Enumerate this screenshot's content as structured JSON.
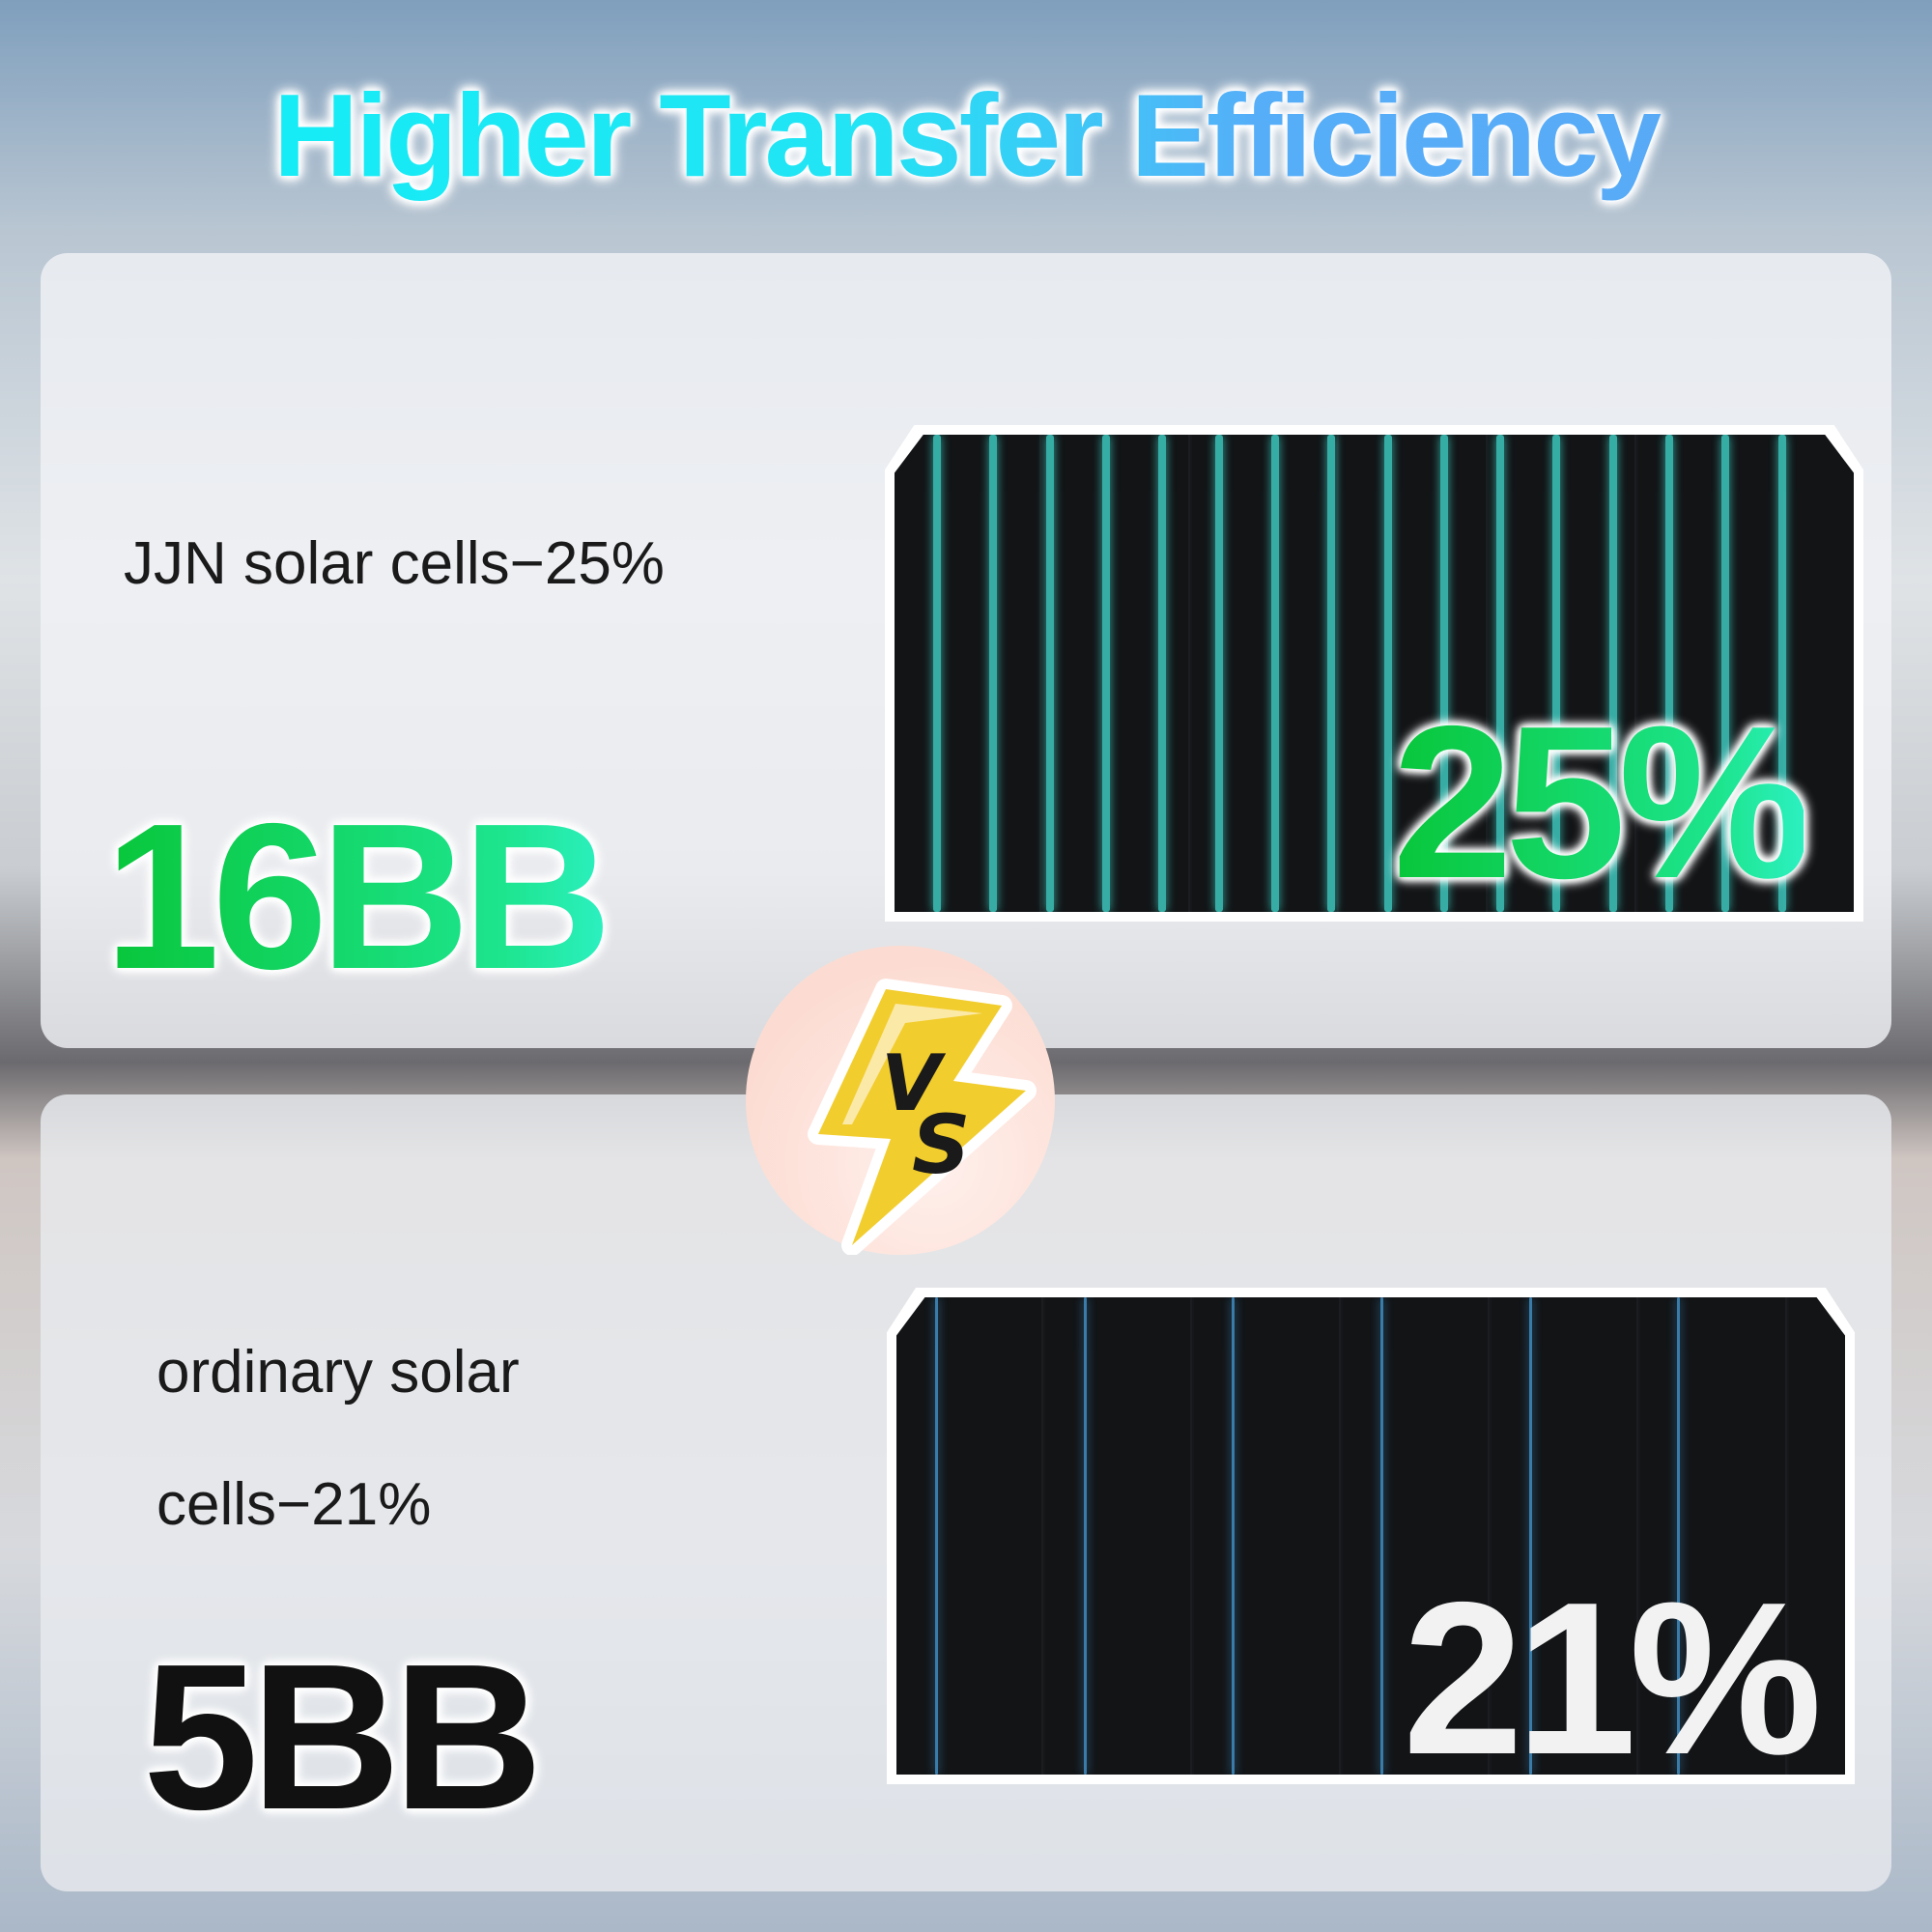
{
  "title": "Higher Transfer Efficiency",
  "top": {
    "label": "JJN solar cells−25%",
    "busbars": "16BB",
    "efficiency": "25%",
    "streak_color": "#3fd3c8"
  },
  "vs": {
    "text": "VS",
    "bolt_color": "#f2cd2e"
  },
  "bottom": {
    "label_line1": "ordinary solar",
    "label_line2": "cells−21%",
    "busbars": "5BB",
    "efficiency": "21%",
    "streak_color": "#4aa8e8"
  }
}
